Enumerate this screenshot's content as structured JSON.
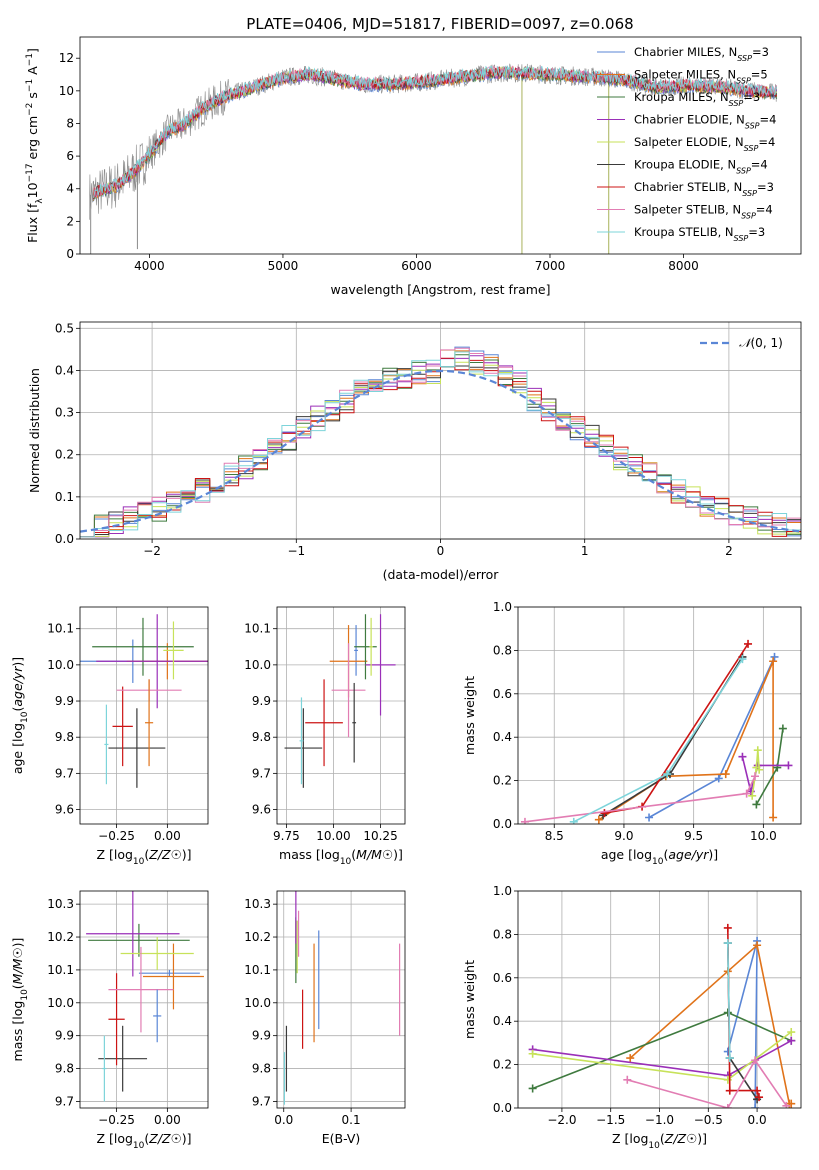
{
  "figure": {
    "title": "PLATE=0406, MJD=51817, FIBERID=0097, z=0.068",
    "palette": [
      "#5a86d6",
      "#e0731a",
      "#3f7a3f",
      "#9a2fb8",
      "#c7e25a",
      "#3a3a3a",
      "#cc1414",
      "#e27db3",
      "#7dd4da",
      "#8a8a8a"
    ]
  },
  "chart_data": [
    {
      "id": "spectrum",
      "type": "line",
      "title": "PLATE=0406, MJD=51817, FIBERID=0097, z=0.068",
      "xlabel": "wavelength [Angstrom, rest frame]",
      "ylabel": "Flux [f_λ10^-17 erg cm^-2 s^-1 A^-1]",
      "xlim": [
        3480,
        8880
      ],
      "ylim": [
        0,
        13.3
      ],
      "xticks": [
        4000,
        5000,
        6000,
        7000,
        8000
      ],
      "yticks": [
        0,
        2,
        4,
        6,
        8,
        10,
        12
      ],
      "grid": false,
      "legend_position": "right",
      "continuum": {
        "x": [
          3550,
          3650,
          3750,
          3850,
          3950,
          4050,
          4150,
          4250,
          4400,
          4550,
          4700,
          4850,
          5000,
          5200,
          5400,
          5600,
          5800,
          6000,
          6200,
          6400,
          6600,
          6800,
          7000,
          7200,
          7400,
          7600,
          7800,
          8000,
          8200,
          8400,
          8600,
          8700
        ],
        "y": [
          3.6,
          3.9,
          4.2,
          4.8,
          5.6,
          6.6,
          7.6,
          7.9,
          8.9,
          9.6,
          10.0,
          10.4,
          10.8,
          11.0,
          10.7,
          10.4,
          10.4,
          10.5,
          10.7,
          10.9,
          11.1,
          11.1,
          11.0,
          10.9,
          10.8,
          10.6,
          10.2,
          10.3,
          10.3,
          10.1,
          9.9,
          9.9
        ]
      },
      "data_dropouts": [
        {
          "x": 3560,
          "y": 0
        },
        {
          "x": 3910,
          "y": 0.3
        },
        {
          "x": 6790,
          "y": 0
        },
        {
          "x": 7440,
          "y": 0
        }
      ],
      "series": [
        {
          "name": "Chabrier MILES, N_SSP=3",
          "label": {
            "main": "Chabrier MILES, N",
            "sub": "SSP",
            "tail": "=3"
          },
          "color": "#5a86d6"
        },
        {
          "name": "Salpeter MILES, N_SSP=5",
          "label": {
            "main": "Salpeter MILES, N",
            "sub": "SSP",
            "tail": "=5"
          },
          "color": "#e0731a"
        },
        {
          "name": "Kroupa MILES, N_SSP=3",
          "label": {
            "main": "Kroupa MILES, N",
            "sub": "SSP",
            "tail": "=3"
          },
          "color": "#3f7a3f"
        },
        {
          "name": "Chabrier ELODIE, N_SSP=4",
          "label": {
            "main": "Chabrier ELODIE, N",
            "sub": "SSP",
            "tail": "=4"
          },
          "color": "#9a2fb8"
        },
        {
          "name": "Salpeter ELODIE, N_SSP=4",
          "label": {
            "main": "Salpeter ELODIE, N",
            "sub": "SSP",
            "tail": "=4"
          },
          "color": "#c7e25a"
        },
        {
          "name": "Kroupa ELODIE, N_SSP=4",
          "label": {
            "main": "Kroupa ELODIE, N",
            "sub": "SSP",
            "tail": "=4"
          },
          "color": "#3a3a3a"
        },
        {
          "name": "Chabrier STELIB, N_SSP=3",
          "label": {
            "main": "Chabrier STELIB, N",
            "sub": "SSP",
            "tail": "=3"
          },
          "color": "#cc1414"
        },
        {
          "name": "Salpeter STELIB, N_SSP=4",
          "label": {
            "main": "Salpeter STELIB, N",
            "sub": "SSP",
            "tail": "=4"
          },
          "color": "#e27db3"
        },
        {
          "name": "Kroupa STELIB, N_SSP=3",
          "label": {
            "main": "Kroupa STELIB, N",
            "sub": "SSP",
            "tail": "=3"
          },
          "color": "#7dd4da"
        }
      ]
    },
    {
      "id": "residuals",
      "type": "histogram",
      "xlabel": "(data-model)/error",
      "ylabel": "Normed distribution",
      "xlim": [
        -2.5,
        2.5
      ],
      "ylim": [
        0,
        0.515
      ],
      "xticks": [
        -2,
        -1,
        0,
        1,
        2
      ],
      "yticks": [
        0.0,
        0.1,
        0.2,
        0.3,
        0.4,
        0.5
      ],
      "grid": true,
      "legend_position": "top-right",
      "bin_width": 0.1,
      "reference": {
        "name": "N(0,1)",
        "label": {
          "script": "𝒩",
          "rest": "(0, 1)"
        },
        "color": "#5a86d6",
        "style": "dashed"
      },
      "series_colors": [
        "#5a86d6",
        "#e0731a",
        "#3f7a3f",
        "#9a2fb8",
        "#c7e25a",
        "#3a3a3a",
        "#cc1414",
        "#e27db3",
        "#7dd4da"
      ]
    },
    {
      "id": "z-age",
      "type": "errorbar",
      "xlabel": "Z [log10(Z/Z☉)]",
      "ylabel": "age [log10(age/yr)]",
      "xlim": [
        -0.43,
        0.2
      ],
      "ylim": [
        9.56,
        10.16
      ],
      "xticks": [
        -0.25,
        0.0
      ],
      "yticks": [
        9.6,
        9.7,
        9.8,
        9.9,
        10.0,
        10.1
      ],
      "grid": true,
      "points": [
        {
          "x": -0.17,
          "y": 10.01,
          "xerr": 0.37,
          "yerr": 0.06,
          "color": "#5a86d6"
        },
        {
          "x": 0.0,
          "y": 10.01,
          "xerr": 0.2,
          "yerr": 0.05,
          "color": "#e0731a"
        },
        {
          "x": -0.12,
          "y": 10.05,
          "xerr": 0.25,
          "yerr": 0.08,
          "color": "#3f7a3f"
        },
        {
          "x": -0.05,
          "y": 10.01,
          "xerr": 0.3,
          "yerr": 0.13,
          "color": "#9a2fb8"
        },
        {
          "x": 0.03,
          "y": 10.04,
          "xerr": 0.05,
          "yerr": 0.08,
          "color": "#c7e25a"
        },
        {
          "x": -0.15,
          "y": 9.77,
          "xerr": 0.14,
          "yerr": 0.11,
          "color": "#3a3a3a"
        },
        {
          "x": -0.22,
          "y": 9.83,
          "xerr": 0.05,
          "yerr": 0.11,
          "color": "#cc1414"
        },
        {
          "x": -0.09,
          "y": 9.93,
          "xerr": 0.16,
          "yerr": 0.03,
          "color": "#e27db3"
        },
        {
          "x": -0.3,
          "y": 9.78,
          "xerr": 0.01,
          "yerr": 0.11,
          "color": "#7dd4da"
        },
        {
          "x": -0.09,
          "y": 9.84,
          "xerr": 0.02,
          "yerr": 0.12,
          "color": "#e0731a"
        }
      ]
    },
    {
      "id": "mass-age",
      "type": "errorbar",
      "xlabel": "mass [log10(M/M☉)]",
      "ylabel": "",
      "xlim": [
        9.7,
        10.38
      ],
      "ylim": [
        9.56,
        10.16
      ],
      "xticks": [
        9.75,
        10.0,
        10.25
      ],
      "yticks": [
        9.6,
        9.7,
        9.8,
        9.9,
        10.0,
        10.1
      ],
      "grid": true,
      "points": [
        {
          "x": 10.12,
          "y": 10.04,
          "xerr": 0.01,
          "yerr": 0.07,
          "color": "#5a86d6"
        },
        {
          "x": 10.08,
          "y": 10.01,
          "xerr": 0.1,
          "yerr": 0.1,
          "color": "#e0731a"
        },
        {
          "x": 10.17,
          "y": 10.05,
          "xerr": 0.06,
          "yerr": 0.09,
          "color": "#3f7a3f"
        },
        {
          "x": 10.25,
          "y": 10.0,
          "xerr": 0.08,
          "yerr": 0.14,
          "color": "#9a2fb8"
        },
        {
          "x": 10.2,
          "y": 10.05,
          "xerr": 0.01,
          "yerr": 0.08,
          "color": "#c7e25a"
        },
        {
          "x": 9.84,
          "y": 9.77,
          "xerr": 0.1,
          "yerr": 0.11,
          "color": "#3a3a3a"
        },
        {
          "x": 9.95,
          "y": 9.84,
          "xerr": 0.1,
          "yerr": 0.12,
          "color": "#cc1414"
        },
        {
          "x": 10.08,
          "y": 9.93,
          "xerr": 0.09,
          "yerr": 0.13,
          "color": "#e27db3"
        },
        {
          "x": 9.83,
          "y": 9.79,
          "xerr": 0.01,
          "yerr": 0.12,
          "color": "#7dd4da"
        },
        {
          "x": 10.11,
          "y": 9.84,
          "xerr": 0.01,
          "yerr": 0.11,
          "color": "#3a3a3a"
        }
      ]
    },
    {
      "id": "age-weight",
      "type": "line",
      "xlabel": "age [log10(age/yr)]",
      "ylabel": "mass weight",
      "xlim": [
        8.24,
        10.27
      ],
      "ylim": [
        0,
        1.0
      ],
      "xticks": [
        8.5,
        9.0,
        9.5,
        10.0
      ],
      "yticks": [
        0.0,
        0.2,
        0.4,
        0.6,
        0.8,
        1.0
      ],
      "grid": true,
      "marker": "+",
      "series": [
        {
          "color": "#5a86d6",
          "x": [
            9.18,
            9.68,
            10.08
          ],
          "y": [
            0.03,
            0.21,
            0.77
          ]
        },
        {
          "color": "#e0731a",
          "x": [
            8.82,
            9.3,
            9.73,
            10.07,
            10.07
          ],
          "y": [
            0.02,
            0.22,
            0.23,
            0.75,
            0.03
          ]
        },
        {
          "color": "#3f7a3f",
          "x": [
            9.95,
            10.1,
            10.14
          ],
          "y": [
            0.09,
            0.26,
            0.44
          ]
        },
        {
          "color": "#9a2fb8",
          "x": [
            9.85,
            9.91,
            9.96,
            10.18
          ],
          "y": [
            0.31,
            0.15,
            0.27,
            0.27
          ]
        },
        {
          "color": "#c7e25a",
          "x": [
            9.92,
            9.95,
            9.96,
            9.97
          ],
          "y": [
            0.13,
            0.26,
            0.34,
            0.25
          ]
        },
        {
          "color": "#3a3a3a",
          "x": [
            8.85,
            9.33,
            9.85
          ],
          "y": [
            0.04,
            0.23,
            0.77
          ]
        },
        {
          "color": "#cc1414",
          "x": [
            8.86,
            9.13,
            9.89
          ],
          "y": [
            0.05,
            0.08,
            0.83
          ]
        },
        {
          "color": "#e27db3",
          "x": [
            8.29,
            9.88,
            9.94
          ],
          "y": [
            0.01,
            0.14,
            0.22
          ]
        },
        {
          "color": "#7dd4da",
          "x": [
            8.64,
            9.31,
            9.85
          ],
          "y": [
            0.01,
            0.23,
            0.76
          ]
        }
      ]
    },
    {
      "id": "z-mass",
      "type": "errorbar",
      "xlabel": "Z [log10(Z/Z☉)]",
      "ylabel": "mass [log10(M/M☉)]",
      "xlim": [
        -0.43,
        0.2
      ],
      "ylim": [
        9.68,
        10.34
      ],
      "xticks": [
        -0.25,
        0.0
      ],
      "yticks": [
        9.7,
        9.8,
        9.9,
        10.0,
        10.1,
        10.2,
        10.3
      ],
      "grid": true,
      "points": [
        {
          "x": 0.01,
          "y": 10.09,
          "xerr": 0.15,
          "yerr": 0.01,
          "color": "#5a86d6"
        },
        {
          "x": 0.03,
          "y": 10.08,
          "xerr": 0.15,
          "yerr": 0.1,
          "color": "#e0731a"
        },
        {
          "x": -0.14,
          "y": 10.19,
          "xerr": 0.25,
          "yerr": 0.05,
          "color": "#3f7a3f"
        },
        {
          "x": -0.17,
          "y": 10.21,
          "xerr": 0.23,
          "yerr": 0.13,
          "color": "#9a2fb8"
        },
        {
          "x": -0.05,
          "y": 10.15,
          "xerr": 0.18,
          "yerr": 0.05,
          "color": "#c7e25a"
        },
        {
          "x": -0.22,
          "y": 9.83,
          "xerr": 0.12,
          "yerr": 0.1,
          "color": "#3a3a3a"
        },
        {
          "x": -0.25,
          "y": 9.95,
          "xerr": 0.04,
          "yerr": 0.14,
          "color": "#cc1414"
        },
        {
          "x": -0.13,
          "y": 10.04,
          "xerr": 0.16,
          "yerr": 0.13,
          "color": "#e27db3"
        },
        {
          "x": -0.31,
          "y": 9.8,
          "xerr": 0.01,
          "yerr": 0.1,
          "color": "#7dd4da"
        },
        {
          "x": -0.05,
          "y": 9.96,
          "xerr": 0.02,
          "yerr": 0.08,
          "color": "#5a86d6"
        }
      ]
    },
    {
      "id": "ebv-mass",
      "type": "errorbar",
      "xlabel": "E(B-V)",
      "ylabel": "",
      "xlim": [
        -0.01,
        0.18
      ],
      "ylim": [
        9.68,
        10.34
      ],
      "xticks": [
        0.0,
        0.1
      ],
      "yticks": [
        9.7,
        9.8,
        9.9,
        10.0,
        10.1,
        10.2,
        10.3
      ],
      "grid": true,
      "points": [
        {
          "x": 0.052,
          "y": 10.07,
          "xerr": 0,
          "yerr": 0.15,
          "color": "#5a86d6"
        },
        {
          "x": 0.045,
          "y": 10.03,
          "xerr": 0,
          "yerr": 0.15,
          "color": "#e0731a"
        },
        {
          "x": 0.018,
          "y": 10.16,
          "xerr": 0,
          "yerr": 0.1,
          "color": "#3f7a3f"
        },
        {
          "x": 0.018,
          "y": 10.26,
          "xerr": 0,
          "yerr": 0.08,
          "color": "#9a2fb8"
        },
        {
          "x": 0.02,
          "y": 10.17,
          "xerr": 0,
          "yerr": 0.08,
          "color": "#c7e25a"
        },
        {
          "x": 0.004,
          "y": 9.83,
          "xerr": 0,
          "yerr": 0.1,
          "color": "#3a3a3a"
        },
        {
          "x": 0.028,
          "y": 9.95,
          "xerr": 0,
          "yerr": 0.09,
          "color": "#cc1414"
        },
        {
          "x": 0.022,
          "y": 10.21,
          "xerr": 0,
          "yerr": 0.07,
          "color": "#e27db3"
        },
        {
          "x": 0.001,
          "y": 9.77,
          "xerr": 0,
          "yerr": 0.08,
          "color": "#7dd4da"
        },
        {
          "x": 0.172,
          "y": 10.04,
          "xerr": 0,
          "yerr": 0.14,
          "color": "#e27db3"
        }
      ]
    },
    {
      "id": "z-weight",
      "type": "line",
      "xlabel": "Z [log10(Z/Z☉)]",
      "ylabel": "mass weight",
      "xlim": [
        -2.45,
        0.45
      ],
      "ylim": [
        0,
        1.0
      ],
      "xticks": [
        -2.0,
        -1.5,
        -1.0,
        -0.5,
        0.0
      ],
      "yticks": [
        0.0,
        0.2,
        0.4,
        0.6,
        0.8,
        1.0
      ],
      "grid": true,
      "marker": "+",
      "series": [
        {
          "color": "#5a86d6",
          "x": [
            -0.3,
            0.0,
            -0.02
          ],
          "y": [
            0.26,
            0.77,
            0.0
          ]
        },
        {
          "color": "#e0731a",
          "x": [
            -1.3,
            -0.3,
            0.0,
            0.33,
            0.35
          ],
          "y": [
            0.23,
            0.63,
            0.75,
            0.02,
            0.02
          ]
        },
        {
          "color": "#3f7a3f",
          "x": [
            -2.3,
            -0.3,
            0.35
          ],
          "y": [
            0.09,
            0.44,
            0.31
          ]
        },
        {
          "color": "#9a2fb8",
          "x": [
            -2.3,
            -0.3,
            0.35
          ],
          "y": [
            0.27,
            0.15,
            0.31
          ]
        },
        {
          "color": "#c7e25a",
          "x": [
            -2.3,
            -0.3,
            0.35
          ],
          "y": [
            0.25,
            0.13,
            0.35
          ]
        },
        {
          "color": "#3a3a3a",
          "x": [
            -0.3,
            -0.28,
            0.0
          ],
          "y": [
            0.76,
            0.23,
            0.04
          ]
        },
        {
          "color": "#cc1414",
          "x": [
            -0.3,
            -0.28,
            0.0,
            0.02
          ],
          "y": [
            0.83,
            0.08,
            0.08,
            0.05
          ]
        },
        {
          "color": "#e27db3",
          "x": [
            -1.33,
            -0.3,
            -0.02,
            0.3
          ],
          "y": [
            0.13,
            0.0,
            0.22,
            0.01
          ]
        },
        {
          "color": "#7dd4da",
          "x": [
            -0.3,
            -0.28
          ],
          "y": [
            0.76,
            0.23
          ]
        }
      ]
    }
  ]
}
